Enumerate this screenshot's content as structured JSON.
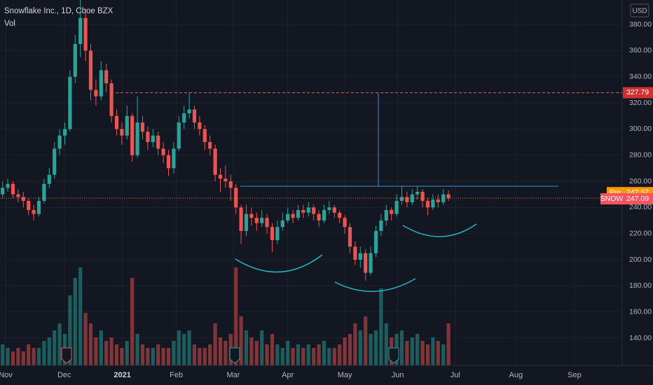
{
  "chart_data": {
    "type": "candlestick",
    "title": "Snowflake Inc., 1D, Cboe BZX",
    "volume_label": "Vol",
    "currency": "USD",
    "ylim": [
      119.11,
      398.75
    ],
    "yticks": [
      {
        "value": 380,
        "label": "380.00"
      },
      {
        "value": 360,
        "label": "360.00"
      },
      {
        "value": 340,
        "label": "340.00"
      },
      {
        "value": 320,
        "label": "320.00"
      },
      {
        "value": 300,
        "label": "300.00"
      },
      {
        "value": 280,
        "label": "280.00"
      },
      {
        "value": 260,
        "label": "260.00"
      },
      {
        "value": 240,
        "label": "240.00"
      },
      {
        "value": 220,
        "label": "220.00"
      },
      {
        "value": 200,
        "label": "200.00"
      },
      {
        "value": 180,
        "label": "180.00"
      },
      {
        "value": 160,
        "label": "160.00"
      },
      {
        "value": 140,
        "label": "140.00"
      }
    ],
    "xlim": [
      -0.5,
      119.5
    ],
    "xticks": [
      {
        "value": 0.6,
        "label": "Nov"
      },
      {
        "value": 11.9,
        "label": "Dec"
      },
      {
        "value": 23.1,
        "label": "2021"
      },
      {
        "value": 33.5,
        "label": "Feb"
      },
      {
        "value": 44.5,
        "label": "Mar"
      },
      {
        "value": 55,
        "label": "Apr"
      },
      {
        "value": 66,
        "label": "May"
      },
      {
        "value": 76.2,
        "label": "Jun"
      },
      {
        "value": 87.3,
        "label": "Jul"
      },
      {
        "value": 99,
        "label": "Aug"
      },
      {
        "value": 110.3,
        "label": "Sep"
      }
    ],
    "up_color": "#26a69a",
    "down_color": "#ef5350",
    "ohlc": [
      [
        250,
        260,
        247,
        255
      ],
      [
        255,
        262,
        252,
        258
      ],
      [
        258,
        260,
        247,
        250
      ],
      [
        250,
        254,
        244,
        248
      ],
      [
        248,
        252,
        240,
        245
      ],
      [
        245,
        247,
        234,
        238
      ],
      [
        238,
        242,
        230,
        235
      ],
      [
        235,
        248,
        233,
        245
      ],
      [
        245,
        262,
        243,
        258
      ],
      [
        258,
        270,
        255,
        265
      ],
      [
        265,
        290,
        262,
        285
      ],
      [
        285,
        300,
        280,
        295
      ],
      [
        295,
        305,
        288,
        300
      ],
      [
        300,
        345,
        298,
        340
      ],
      [
        340,
        372,
        335,
        365
      ],
      [
        365,
        399,
        355,
        385
      ],
      [
        385,
        392,
        352,
        360
      ],
      [
        360,
        365,
        322,
        330
      ],
      [
        330,
        338,
        318,
        325
      ],
      [
        325,
        352,
        322,
        345
      ],
      [
        345,
        350,
        328,
        335
      ],
      [
        335,
        338,
        305,
        310
      ],
      [
        310,
        315,
        295,
        300
      ],
      [
        300,
        305,
        288,
        295
      ],
      [
        295,
        318,
        292,
        310
      ],
      [
        310,
        312,
        275,
        280
      ],
      [
        280,
        325,
        278,
        305
      ],
      [
        305,
        310,
        292,
        298
      ],
      [
        298,
        302,
        284,
        290
      ],
      [
        290,
        300,
        286,
        295
      ],
      [
        295,
        298,
        280,
        285
      ],
      [
        285,
        290,
        274,
        280
      ],
      [
        280,
        284,
        264,
        270
      ],
      [
        270,
        290,
        266,
        285
      ],
      [
        285,
        310,
        283,
        305
      ],
      [
        305,
        318,
        300,
        312
      ],
      [
        312,
        328,
        308,
        315
      ],
      [
        315,
        318,
        300,
        305
      ],
      [
        305,
        310,
        295,
        300
      ],
      [
        300,
        303,
        284,
        290
      ],
      [
        290,
        295,
        280,
        285
      ],
      [
        285,
        288,
        260,
        265
      ],
      [
        265,
        270,
        252,
        262
      ],
      [
        262,
        272,
        255,
        260
      ],
      [
        260,
        265,
        245,
        255
      ],
      [
        255,
        258,
        235,
        240
      ],
      [
        240,
        242,
        212,
        222
      ],
      [
        222,
        242,
        218,
        235
      ],
      [
        235,
        240,
        226,
        232
      ],
      [
        232,
        236,
        222,
        228
      ],
      [
        228,
        238,
        225,
        232
      ],
      [
        232,
        235,
        220,
        225
      ],
      [
        225,
        228,
        206,
        215
      ],
      [
        215,
        230,
        212,
        225
      ],
      [
        225,
        236,
        222,
        230
      ],
      [
        230,
        240,
        228,
        235
      ],
      [
        235,
        238,
        228,
        232
      ],
      [
        232,
        242,
        230,
        238
      ],
      [
        238,
        242,
        232,
        236
      ],
      [
        236,
        244,
        233,
        240
      ],
      [
        240,
        242,
        230,
        235
      ],
      [
        235,
        238,
        225,
        230
      ],
      [
        230,
        242,
        228,
        238
      ],
      [
        238,
        245,
        235,
        240
      ],
      [
        240,
        242,
        232,
        236
      ],
      [
        236,
        238,
        228,
        232
      ],
      [
        232,
        234,
        220,
        225
      ],
      [
        225,
        228,
        205,
        210
      ],
      [
        210,
        214,
        196,
        200
      ],
      [
        200,
        210,
        194,
        205
      ],
      [
        205,
        208,
        184,
        190
      ],
      [
        190,
        210,
        188,
        205
      ],
      [
        205,
        226,
        202,
        222
      ],
      [
        222,
        235,
        218,
        230
      ],
      [
        230,
        242,
        226,
        238
      ],
      [
        238,
        240,
        230,
        235
      ],
      [
        235,
        250,
        233,
        245
      ],
      [
        245,
        256,
        242,
        248
      ],
      [
        248,
        252,
        240,
        244
      ],
      [
        244,
        254,
        242,
        250
      ],
      [
        250,
        256,
        246,
        252
      ],
      [
        252,
        254,
        240,
        245
      ],
      [
        245,
        247,
        234,
        240
      ],
      [
        240,
        250,
        238,
        246
      ],
      [
        246,
        250,
        240,
        244
      ],
      [
        244,
        254,
        242,
        250
      ],
      [
        250,
        253,
        245,
        247.09
      ]
    ],
    "volume": [
      6,
      5,
      4,
      5,
      4,
      6,
      5,
      5,
      7,
      8,
      10,
      12,
      9,
      20,
      25,
      28,
      15,
      12,
      8,
      10,
      7,
      8,
      6,
      5,
      7,
      25,
      9,
      6,
      5,
      5,
      6,
      5,
      5,
      7,
      10,
      9,
      10,
      6,
      5,
      5,
      6,
      12,
      8,
      7,
      9,
      28,
      14,
      10,
      8,
      7,
      10,
      6,
      9,
      6,
      5,
      7,
      5,
      6,
      5,
      6,
      5,
      6,
      7,
      5,
      5,
      6,
      8,
      9,
      12,
      10,
      14,
      9,
      10,
      22,
      12,
      8,
      9,
      10,
      7,
      8,
      9,
      7,
      6,
      8,
      7,
      6,
      12
    ],
    "vlim": [
      0,
      30
    ],
    "level_price": 327.79,
    "pre_label": "Pre",
    "pre_price": 247.57,
    "last_label": "SNOW",
    "last_price": 247.09
  }
}
